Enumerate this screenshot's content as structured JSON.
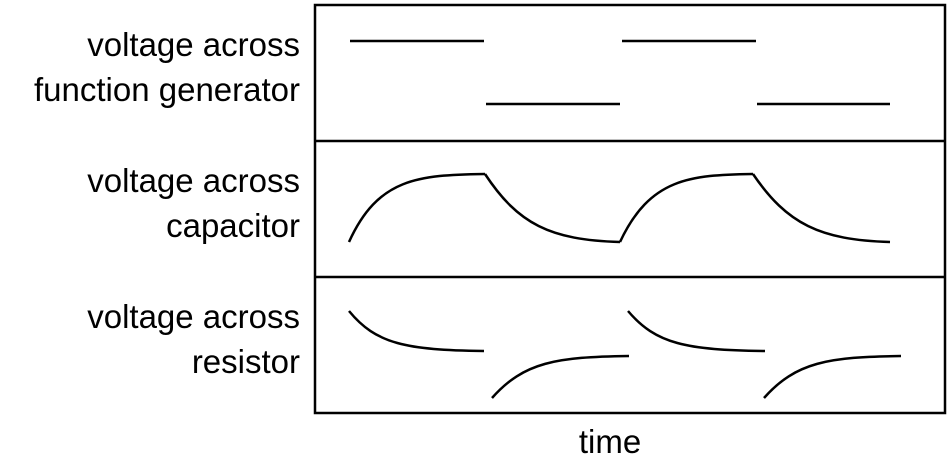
{
  "rows": [
    {
      "label_line1": "voltage across",
      "label_line2": "function generator"
    },
    {
      "label_line1": "voltage across",
      "label_line2": "capacitor"
    },
    {
      "label_line1": "voltage across",
      "label_line2": "resistor"
    }
  ],
  "x_axis_label": "time",
  "colors": {
    "stroke": "#000000",
    "background": "#ffffff"
  }
}
